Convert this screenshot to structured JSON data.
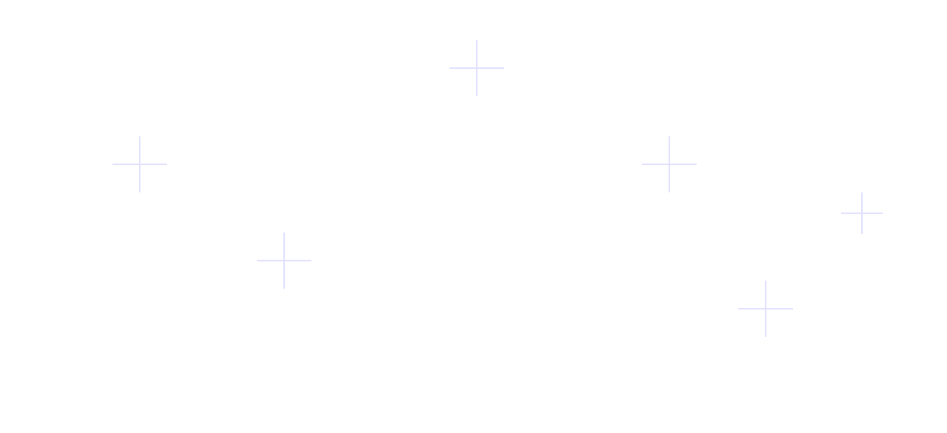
{
  "colors": {
    "background": "#ffffff",
    "cross": "#e2e2ff"
  },
  "decorations": {
    "icon": "plus-cross-icon"
  }
}
